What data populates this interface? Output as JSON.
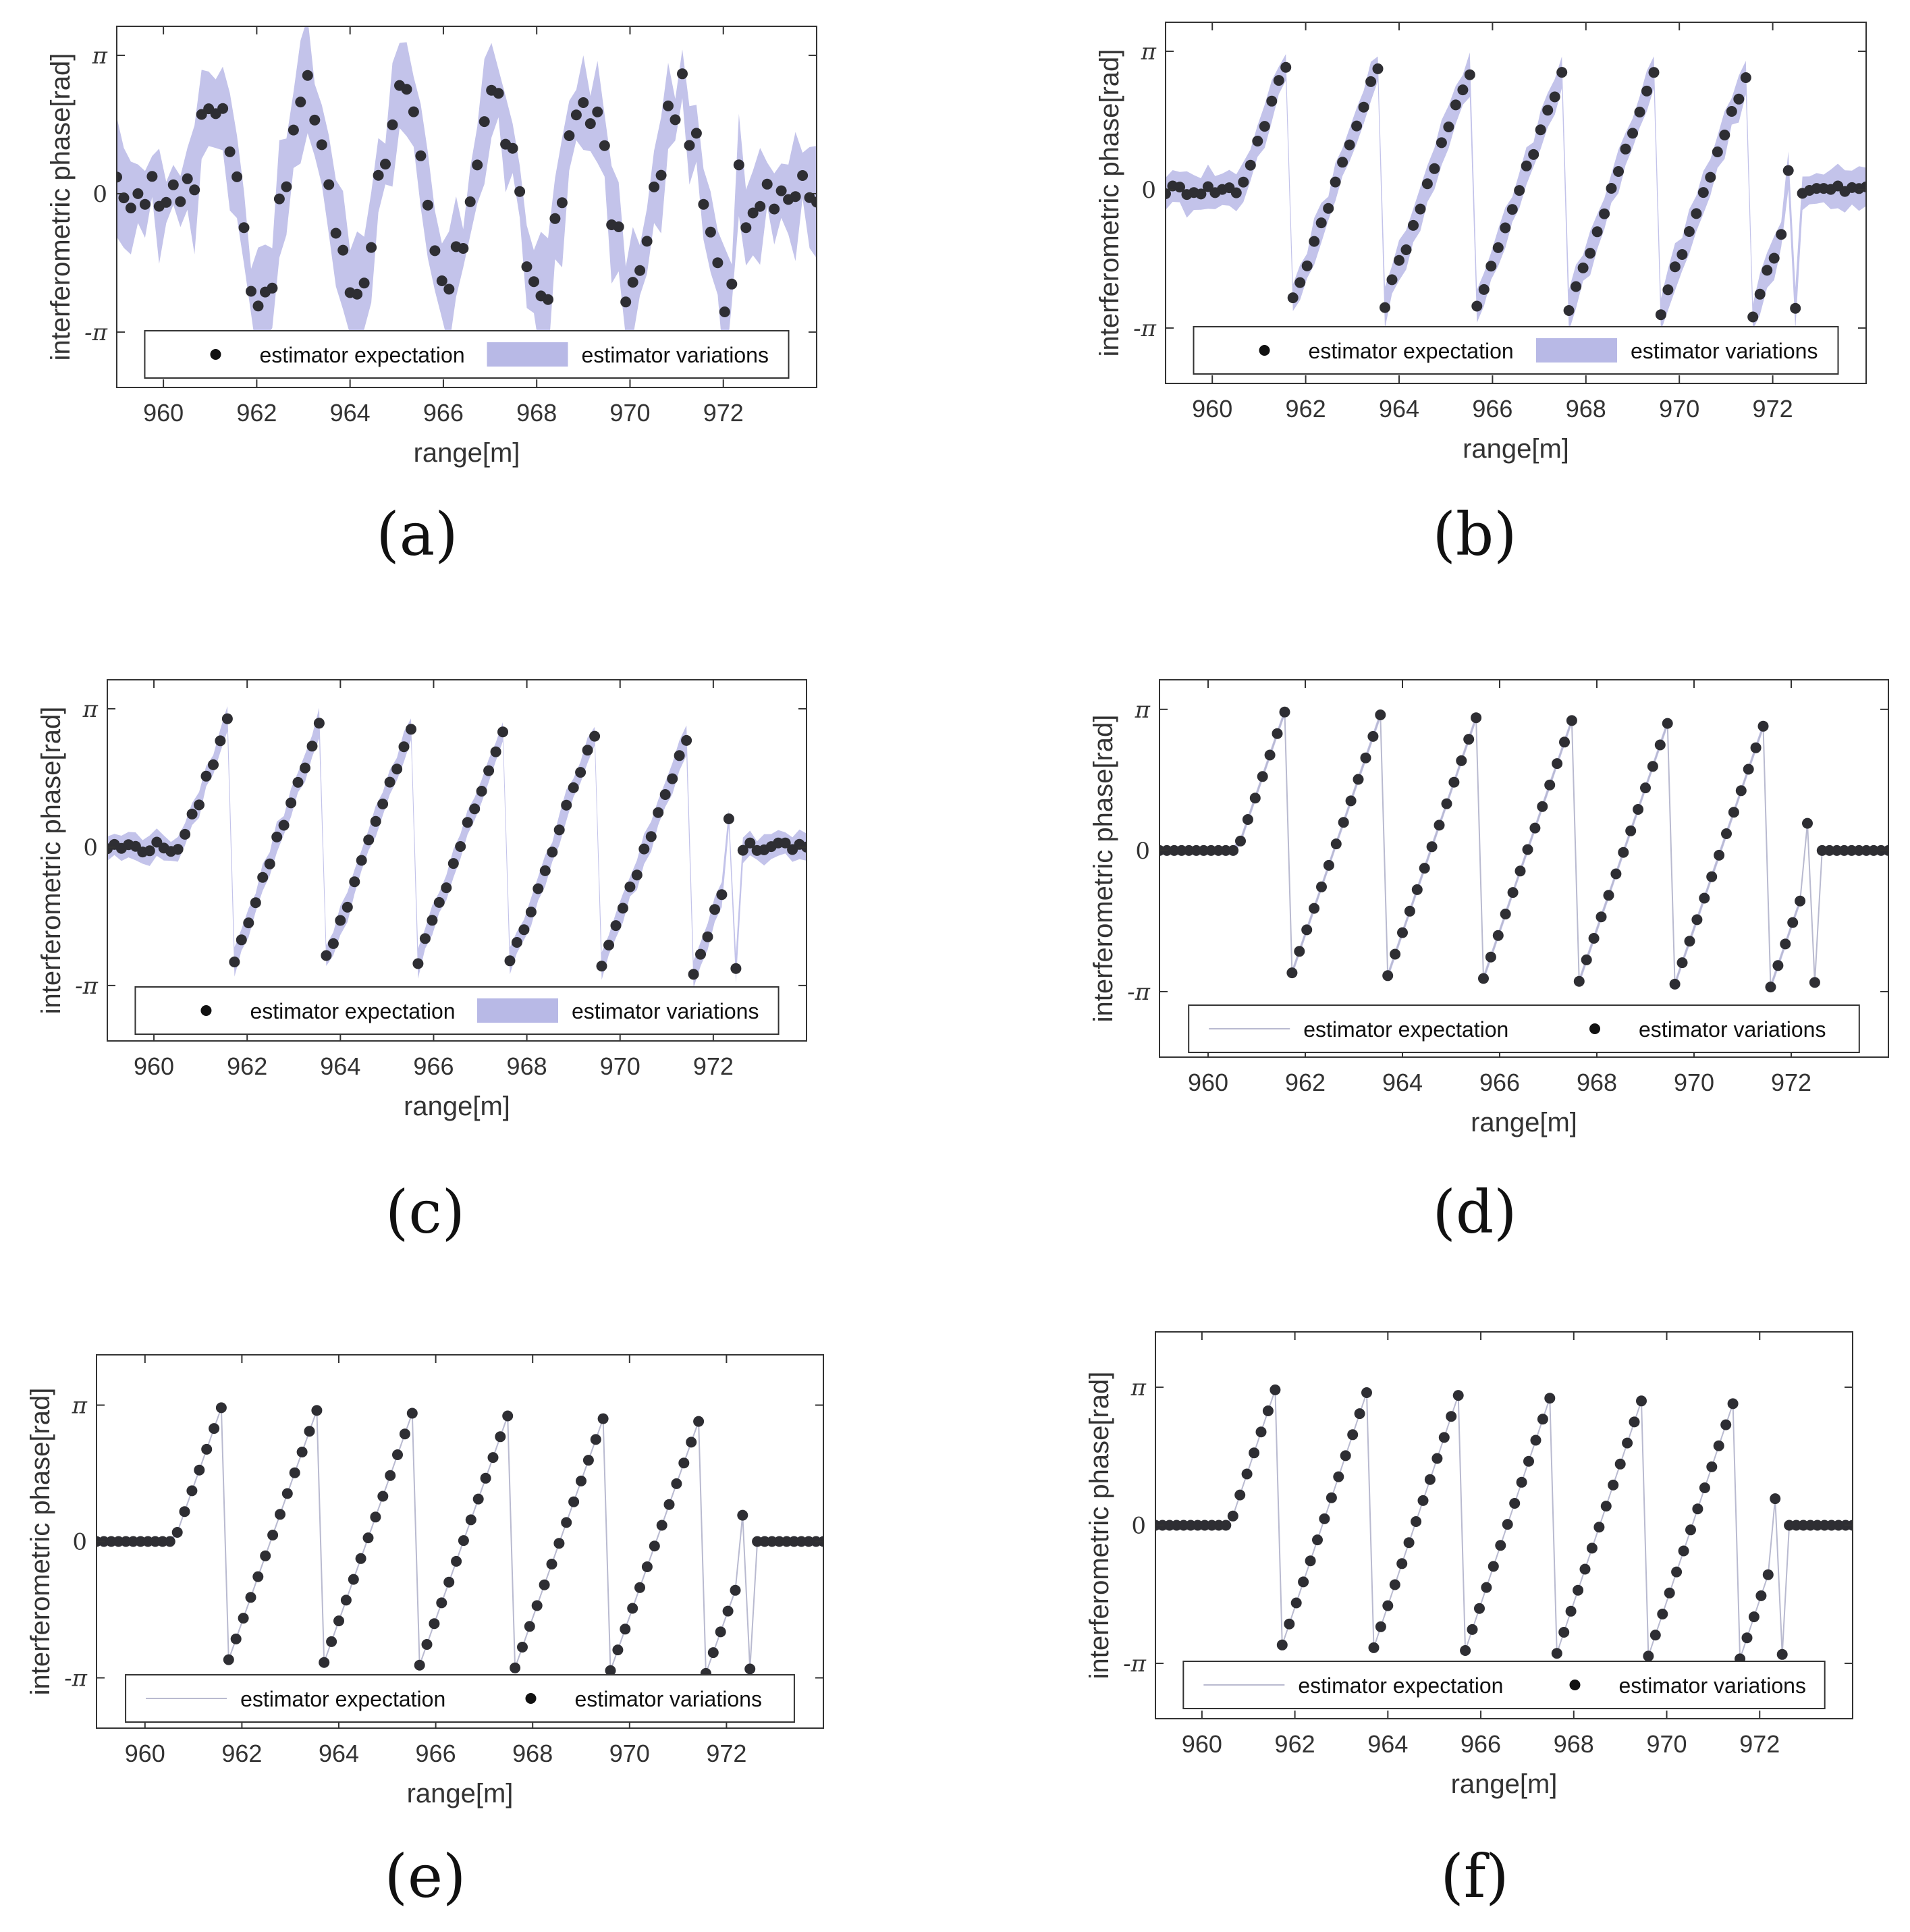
{
  "figure": {
    "symbols": {
      "pi": "π",
      "neg_pi": "-π",
      "zero": "0"
    },
    "colors": {
      "band": "#b8b9e6",
      "dots": "#2e2e33",
      "line": "#b9bad0",
      "frame": "#333333",
      "text": "#333333"
    },
    "panels": [
      {
        "id": "a",
        "caption": "(a)",
        "chart_data": {
          "type": "scatter",
          "xlabel": "range[m]",
          "ylabel": "interferometric phase[rad]",
          "xlim": [
            959,
            974
          ],
          "ylim": [
            -4.4,
            3.8
          ],
          "xticks": [
            960,
            962,
            964,
            966,
            968,
            970,
            972
          ],
          "yticks": [
            -3.14159,
            0,
            3.14159
          ],
          "ytick_labels": [
            "-π",
            "0",
            "π"
          ],
          "legend": {
            "position": "bottom-center",
            "entries": [
              {
                "label": "estimator expectation",
                "marker": "dot"
              },
              {
                "label": "estimator variations",
                "marker": "band"
              }
            ]
          },
          "series": [
            {
              "name": "estimator expectation",
              "style": "dots",
              "generator": "noisy"
            },
            {
              "name": "estimator variations",
              "style": "band",
              "width": 0.75,
              "jitter": 0.7
            }
          ]
        }
      },
      {
        "id": "b",
        "caption": "(b)",
        "chart_data": {
          "type": "scatter",
          "xlabel": "range[m]",
          "ylabel": "interferometric phase[rad]",
          "xlim": [
            959,
            974
          ],
          "ylim": [
            -4.4,
            3.8
          ],
          "xticks": [
            960,
            962,
            964,
            966,
            968,
            970,
            972
          ],
          "yticks": [
            -3.14159,
            0,
            3.14159
          ],
          "ytick_labels": [
            "-π",
            "0",
            "π"
          ],
          "legend": {
            "position": "bottom-center",
            "entries": [
              {
                "label": "estimator expectation",
                "marker": "dot"
              },
              {
                "label": "estimator variations",
                "marker": "band"
              }
            ]
          },
          "series": [
            {
              "name": "estimator expectation",
              "style": "dots",
              "generator": "smooth-wrap"
            },
            {
              "name": "estimator variations",
              "style": "band",
              "width": 0.35,
              "jitter": 0.4
            }
          ]
        }
      },
      {
        "id": "c",
        "caption": "(c)",
        "chart_data": {
          "type": "scatter",
          "xlabel": "range[m]",
          "ylabel": "interferometric phase[rad]",
          "xlim": [
            959,
            974
          ],
          "ylim": [
            -4.4,
            3.8
          ],
          "xticks": [
            960,
            962,
            964,
            966,
            968,
            970,
            972
          ],
          "yticks": [
            -3.14159,
            0,
            3.14159
          ],
          "ytick_labels": [
            "-π",
            "0",
            "π"
          ],
          "legend": {
            "position": "bottom-center",
            "entries": [
              {
                "label": "estimator expectation",
                "marker": "dot"
              },
              {
                "label": "estimator variations",
                "marker": "band"
              }
            ]
          },
          "series": [
            {
              "name": "estimator expectation",
              "style": "dots",
              "generator": "smooth-wrap"
            },
            {
              "name": "estimator variations",
              "style": "band",
              "width": 0.25,
              "jitter": 0.3
            }
          ]
        }
      },
      {
        "id": "d",
        "caption": "(d)",
        "chart_data": {
          "type": "scatter",
          "xlabel": "range[m]",
          "ylabel": "interferometric phase[rad]",
          "xlim": [
            959,
            974
          ],
          "ylim": [
            -4.6,
            3.8
          ],
          "xticks": [
            960,
            962,
            964,
            966,
            968,
            970,
            972
          ],
          "yticks": [
            -3.14159,
            0,
            3.14159
          ],
          "ytick_labels": [
            "-π",
            "0",
            "π"
          ],
          "legend": {
            "position": "bottom-center",
            "entries": [
              {
                "label": "estimator expectation",
                "marker": "line"
              },
              {
                "label": "estimator variations",
                "marker": "dot"
              }
            ]
          },
          "series": [
            {
              "name": "estimator expectation",
              "style": "line",
              "generator": "sawtooth"
            },
            {
              "name": "estimator variations",
              "style": "dots",
              "generator": "sawtooth",
              "band_width": 0.08
            }
          ]
        }
      },
      {
        "id": "e",
        "caption": "(e)",
        "chart_data": {
          "type": "scatter",
          "xlabel": "range[m]",
          "ylabel": "interferometric phase[rad]",
          "xlim": [
            959,
            974
          ],
          "ylim": [
            -4.3,
            4.3
          ],
          "xticks": [
            960,
            962,
            964,
            966,
            968,
            970,
            972
          ],
          "yticks": [
            -3.14159,
            0,
            3.14159
          ],
          "ytick_labels": [
            "-π",
            "0",
            "π"
          ],
          "legend": {
            "position": "bottom-center",
            "entries": [
              {
                "label": "estimator expectation",
                "marker": "line"
              },
              {
                "label": "estimator variations",
                "marker": "dot"
              }
            ]
          },
          "series": [
            {
              "name": "estimator expectation",
              "style": "line",
              "generator": "sawtooth"
            },
            {
              "name": "estimator variations",
              "style": "dots",
              "generator": "sawtooth",
              "band_width": 0.04
            }
          ]
        }
      },
      {
        "id": "f",
        "caption": "(f)",
        "chart_data": {
          "type": "scatter",
          "xlabel": "range[m]",
          "ylabel": "interferometric phase[rad]",
          "xlim": [
            959,
            974
          ],
          "ylim": [
            -4.4,
            4.4
          ],
          "xticks": [
            960,
            962,
            964,
            966,
            968,
            970,
            972
          ],
          "yticks": [
            -3.14159,
            0,
            3.14159
          ],
          "ytick_labels": [
            "-π",
            "0",
            "π"
          ],
          "legend": {
            "position": "bottom-center",
            "entries": [
              {
                "label": "estimator expectation",
                "marker": "line"
              },
              {
                "label": "estimator variations",
                "marker": "dot"
              }
            ]
          },
          "series": [
            {
              "name": "estimator expectation",
              "style": "line",
              "generator": "sawtooth"
            },
            {
              "name": "estimator variations",
              "style": "dots",
              "generator": "sawtooth",
              "band_width": 0.02
            }
          ]
        }
      }
    ]
  }
}
